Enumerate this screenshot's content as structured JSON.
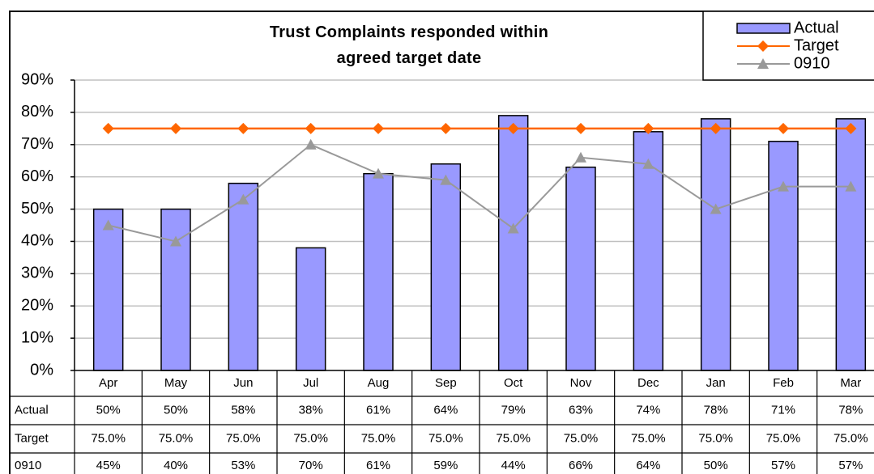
{
  "chart_data": {
    "type": "bar",
    "title": "Trust Complaints responded within agreed target date",
    "categories": [
      "Apr",
      "May",
      "Jun",
      "Jul",
      "Aug",
      "Sep",
      "Oct",
      "Nov",
      "Dec",
      "Jan",
      "Feb",
      "Mar"
    ],
    "series": [
      {
        "name": "Actual",
        "type": "bar",
        "color": "#9999ff",
        "values": [
          50,
          50,
          58,
          38,
          61,
          64,
          79,
          63,
          74,
          78,
          71,
          78
        ],
        "value_labels": [
          "50%",
          "50%",
          "58%",
          "38%",
          "61%",
          "64%",
          "79%",
          "63%",
          "74%",
          "78%",
          "71%",
          "78%"
        ]
      },
      {
        "name": "Target",
        "type": "line",
        "marker": "diamond",
        "color": "#ff6600",
        "values": [
          75,
          75,
          75,
          75,
          75,
          75,
          75,
          75,
          75,
          75,
          75,
          75
        ],
        "value_labels": [
          "75.0%",
          "75.0%",
          "75.0%",
          "75.0%",
          "75.0%",
          "75.0%",
          "75.0%",
          "75.0%",
          "75.0%",
          "75.0%",
          "75.0%",
          "75.0%"
        ]
      },
      {
        "name": "0910",
        "type": "line",
        "marker": "triangle",
        "color": "#999999",
        "values": [
          45,
          40,
          53,
          70,
          61,
          59,
          44,
          66,
          64,
          50,
          57,
          57
        ],
        "value_labels": [
          "45%",
          "40%",
          "53%",
          "70%",
          "61%",
          "59%",
          "44%",
          "66%",
          "64%",
          "50%",
          "57%",
          "57%"
        ]
      }
    ],
    "ylim": [
      0,
      90
    ],
    "yticks": [
      {
        "value": 0,
        "label": "0%"
      },
      {
        "value": 10,
        "label": "10%"
      },
      {
        "value": 20,
        "label": "20%"
      },
      {
        "value": 30,
        "label": "30%"
      },
      {
        "value": 40,
        "label": "40%"
      },
      {
        "value": 50,
        "label": "50%"
      },
      {
        "value": 60,
        "label": "60%"
      },
      {
        "value": 70,
        "label": "70%"
      },
      {
        "value": 80,
        "label": "80%"
      },
      {
        "value": 90,
        "label": "90%"
      }
    ],
    "grid": true,
    "legend": "top-right"
  }
}
